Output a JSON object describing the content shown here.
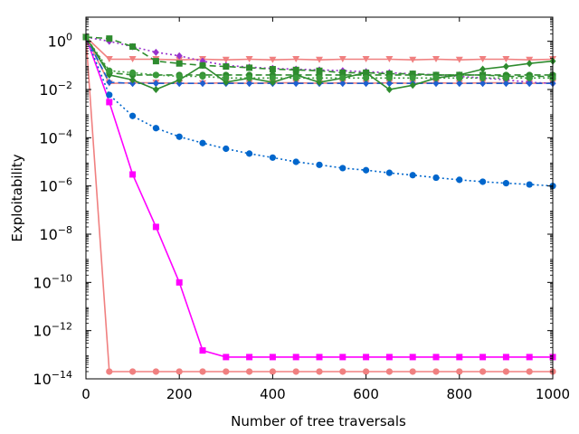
{
  "chart_data": {
    "type": "line",
    "title": "",
    "xlabel": "Number of tree traversals",
    "ylabel": "Exploitability",
    "xscale": "linear",
    "yscale": "log",
    "xlim": [
      0,
      1000
    ],
    "ylim": [
      1e-14,
      10
    ],
    "x_ticks": [
      0,
      200,
      400,
      600,
      800,
      1000
    ],
    "x_tick_labels": [
      "0",
      "200",
      "400",
      "600",
      "800",
      "1000"
    ],
    "y_tick_exponents": [
      0,
      -2,
      -4,
      -6,
      -8,
      -10,
      -12,
      -14
    ],
    "y_tick_labels": [
      "10^0",
      "10^-2",
      "10^-4",
      "10^-6",
      "10^-8",
      "10^-10",
      "10^-12",
      "10^-14"
    ],
    "grid": false,
    "legend": "none",
    "series": [
      {
        "name": "salmon-circle-solid",
        "color": "#f08080",
        "marker": "circle",
        "linestyle": "solid",
        "x": [
          0,
          50,
          100,
          150,
          200,
          250,
          300,
          350,
          400,
          450,
          500,
          550,
          600,
          650,
          700,
          750,
          800,
          850,
          900,
          950,
          1000
        ],
        "values": [
          1.5,
          2e-14,
          2e-14,
          2e-14,
          2e-14,
          2e-14,
          2e-14,
          2e-14,
          2e-14,
          2e-14,
          2e-14,
          2e-14,
          2e-14,
          2e-14,
          2e-14,
          2e-14,
          2e-14,
          2e-14,
          2e-14,
          2e-14,
          2e-14
        ]
      },
      {
        "name": "magenta-square-solid",
        "color": "#ff00ff",
        "marker": "square",
        "linestyle": "solid",
        "x": [
          0,
          50,
          100,
          150,
          200,
          250,
          300,
          350,
          400,
          450,
          500,
          550,
          600,
          650,
          700,
          750,
          800,
          850,
          900,
          950,
          1000
        ],
        "values": [
          1.5,
          0.003,
          3e-06,
          2e-08,
          1e-10,
          1.5e-13,
          8e-14,
          8e-14,
          8e-14,
          8e-14,
          8e-14,
          8e-14,
          8e-14,
          8e-14,
          8e-14,
          8e-14,
          8e-14,
          8e-14,
          8e-14,
          8e-14,
          8e-14
        ]
      },
      {
        "name": "blue-circle-dotted",
        "color": "#0066cc",
        "marker": "circle",
        "linestyle": "dotted",
        "x": [
          0,
          50,
          100,
          150,
          200,
          250,
          300,
          350,
          400,
          450,
          500,
          550,
          600,
          650,
          700,
          750,
          800,
          850,
          900,
          950,
          1000
        ],
        "values": [
          1.5,
          0.006,
          0.0008,
          0.00025,
          0.00011,
          6e-05,
          3.5e-05,
          2.2e-05,
          1.5e-05,
          1e-05,
          7.5e-06,
          5.5e-06,
          4.5e-06,
          3.5e-06,
          2.8e-06,
          2.2e-06,
          1.8e-06,
          1.5e-06,
          1.3e-06,
          1.15e-06,
          1e-06
        ]
      },
      {
        "name": "salmon-triangle-top",
        "color": "#f08080",
        "marker": "triangle-down",
        "linestyle": "solid",
        "x": [
          0,
          50,
          100,
          150,
          200,
          250,
          300,
          350,
          400,
          450,
          500,
          550,
          600,
          650,
          700,
          750,
          800,
          850,
          900,
          950,
          1000
        ],
        "values": [
          1.5,
          0.18,
          0.18,
          0.18,
          0.17,
          0.18,
          0.17,
          0.18,
          0.17,
          0.18,
          0.17,
          0.18,
          0.18,
          0.18,
          0.17,
          0.18,
          0.17,
          0.18,
          0.18,
          0.17,
          0.18
        ]
      },
      {
        "name": "salmon-triangle-low",
        "color": "#f08080",
        "marker": "triangle-down",
        "linestyle": "solid",
        "x": [
          0,
          50,
          100,
          150,
          200,
          250,
          300,
          350,
          400,
          450,
          500,
          550,
          600,
          650,
          700,
          750,
          800,
          850,
          900,
          950,
          1000
        ],
        "values": [
          1.5,
          0.018,
          0.019,
          0.019,
          0.018,
          0.018,
          0.019,
          0.018,
          0.019,
          0.019,
          0.018,
          0.019,
          0.018,
          0.019,
          0.018,
          0.019,
          0.018,
          0.019,
          0.019,
          0.018,
          0.019
        ]
      },
      {
        "name": "purple-diamond-dotted",
        "color": "#9932cc",
        "marker": "diamond",
        "linestyle": "dotted",
        "x": [
          0,
          50,
          100,
          150,
          200,
          250,
          300,
          350,
          400,
          450,
          500,
          550,
          600,
          650,
          700,
          750,
          800,
          850,
          900,
          950,
          1000
        ],
        "values": [
          1.5,
          1.0,
          0.6,
          0.35,
          0.25,
          0.15,
          0.1,
          0.085,
          0.075,
          0.07,
          0.065,
          0.06,
          0.055,
          0.05,
          0.045,
          0.04,
          0.035,
          0.03,
          0.025,
          0.02,
          0.018
        ]
      },
      {
        "name": "blue-diamond-dashed",
        "color": "#1f5fd0",
        "marker": "diamond",
        "linestyle": "dashed",
        "x": [
          0,
          50,
          100,
          150,
          200,
          250,
          300,
          350,
          400,
          450,
          500,
          550,
          600,
          650,
          700,
          750,
          800,
          850,
          900,
          950,
          1000
        ],
        "values": [
          1.5,
          0.02,
          0.018,
          0.018,
          0.018,
          0.018,
          0.018,
          0.018,
          0.018,
          0.018,
          0.018,
          0.018,
          0.018,
          0.018,
          0.018,
          0.018,
          0.018,
          0.018,
          0.018,
          0.018,
          0.018
        ]
      },
      {
        "name": "green-square-dashed",
        "color": "#2e8b2e",
        "marker": "square",
        "linestyle": "dashed",
        "x": [
          0,
          50,
          100,
          150,
          200,
          250,
          300,
          350,
          400,
          450,
          500,
          550,
          600,
          650,
          700,
          750,
          800,
          850,
          900,
          950,
          1000
        ],
        "values": [
          1.5,
          1.3,
          0.6,
          0.15,
          0.12,
          0.1,
          0.09,
          0.08,
          0.07,
          0.065,
          0.06,
          0.05,
          0.05,
          0.045,
          0.045,
          0.04,
          0.04,
          0.04,
          0.035,
          0.035,
          0.035
        ]
      },
      {
        "name": "green-circle-dashed",
        "color": "#2e8b2e",
        "marker": "circle",
        "linestyle": "dashed",
        "x": [
          0,
          50,
          100,
          150,
          200,
          250,
          300,
          350,
          400,
          450,
          500,
          550,
          600,
          650,
          700,
          750,
          800,
          850,
          900,
          950,
          1000
        ],
        "values": [
          1.5,
          0.05,
          0.04,
          0.04,
          0.04,
          0.04,
          0.04,
          0.04,
          0.04,
          0.04,
          0.04,
          0.04,
          0.04,
          0.04,
          0.04,
          0.04,
          0.04,
          0.04,
          0.04,
          0.04,
          0.04
        ]
      },
      {
        "name": "green-diamond-solid",
        "color": "#2e8b2e",
        "marker": "diamond",
        "linestyle": "solid",
        "x": [
          0,
          50,
          100,
          150,
          200,
          250,
          300,
          350,
          400,
          450,
          500,
          550,
          600,
          650,
          700,
          750,
          800,
          850,
          900,
          950,
          1000
        ],
        "values": [
          1.5,
          0.04,
          0.025,
          0.01,
          0.025,
          0.1,
          0.02,
          0.03,
          0.02,
          0.04,
          0.02,
          0.03,
          0.05,
          0.01,
          0.015,
          0.03,
          0.04,
          0.07,
          0.09,
          0.12,
          0.15
        ]
      },
      {
        "name": "green-circle-dotted",
        "color": "#3a9a3a",
        "marker": "circle",
        "linestyle": "dotted",
        "x": [
          0,
          50,
          100,
          150,
          200,
          250,
          300,
          350,
          400,
          450,
          500,
          550,
          600,
          650,
          700,
          750,
          800,
          850,
          900,
          950,
          1000
        ],
        "values": [
          1.5,
          0.06,
          0.05,
          0.04,
          0.035,
          0.035,
          0.03,
          0.03,
          0.03,
          0.03,
          0.03,
          0.03,
          0.03,
          0.03,
          0.03,
          0.03,
          0.03,
          0.03,
          0.03,
          0.03,
          0.03
        ]
      }
    ]
  }
}
